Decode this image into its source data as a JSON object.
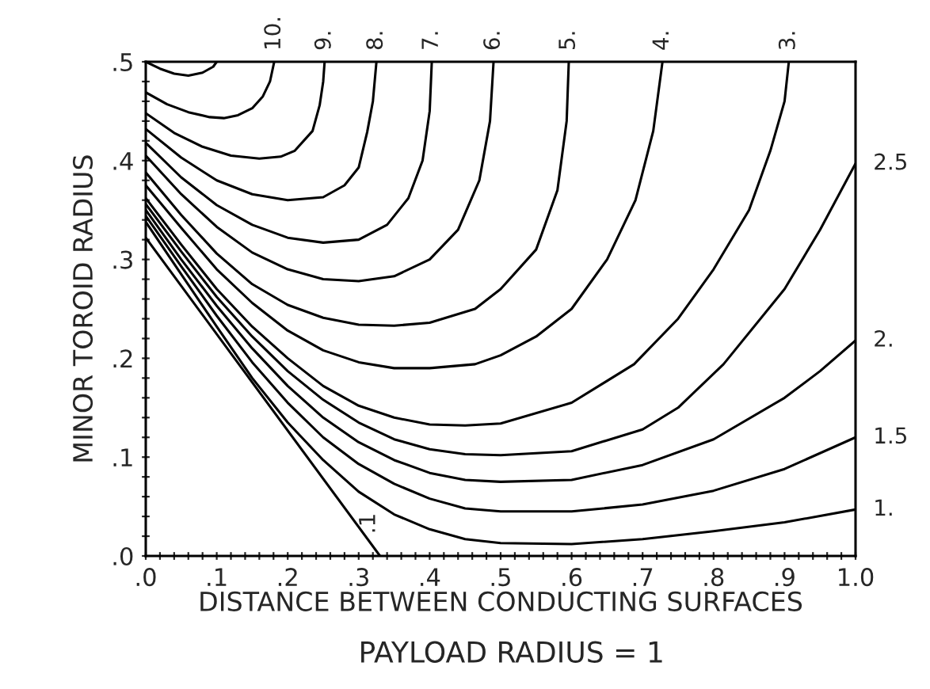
{
  "chart_data": {
    "type": "line",
    "xlabel": "DISTANCE BETWEEN CONDUCTING SURFACES",
    "ylabel": "MINOR TOROID RADIUS",
    "annotations": [
      "PAYLOAD RADIUS = 1"
    ],
    "xlim": [
      0,
      1.0
    ],
    "ylim": [
      0,
      0.5
    ],
    "xticks": [
      {
        "value": 0,
        "label": ".0"
      },
      {
        "value": 0.02,
        "label": null
      },
      {
        "value": 0.04,
        "label": null
      },
      {
        "value": 0.06,
        "label": null
      },
      {
        "value": 0.08,
        "label": null
      },
      {
        "value": 0.1,
        "label": ".1"
      },
      {
        "value": 0.12,
        "label": null
      },
      {
        "value": 0.14,
        "label": null
      },
      {
        "value": 0.16,
        "label": null
      },
      {
        "value": 0.18,
        "label": null
      },
      {
        "value": 0.2,
        "label": ".2"
      },
      {
        "value": 0.22,
        "label": null
      },
      {
        "value": 0.24,
        "label": null
      },
      {
        "value": 0.26,
        "label": null
      },
      {
        "value": 0.28,
        "label": null
      },
      {
        "value": 0.3,
        "label": ".3"
      },
      {
        "value": 0.32,
        "label": null
      },
      {
        "value": 0.34,
        "label": null
      },
      {
        "value": 0.36,
        "label": null
      },
      {
        "value": 0.38,
        "label": null
      },
      {
        "value": 0.4,
        "label": ".4"
      },
      {
        "value": 0.42,
        "label": null
      },
      {
        "value": 0.44,
        "label": null
      },
      {
        "value": 0.46,
        "label": null
      },
      {
        "value": 0.48,
        "label": null
      },
      {
        "value": 0.5,
        "label": ".5"
      },
      {
        "value": 0.52,
        "label": null
      },
      {
        "value": 0.54,
        "label": null
      },
      {
        "value": 0.56,
        "label": null
      },
      {
        "value": 0.58,
        "label": null
      },
      {
        "value": 0.6,
        "label": ".6"
      },
      {
        "value": 0.62,
        "label": null
      },
      {
        "value": 0.64,
        "label": null
      },
      {
        "value": 0.66,
        "label": null
      },
      {
        "value": 0.68,
        "label": null
      },
      {
        "value": 0.7,
        "label": ".7"
      },
      {
        "value": 0.72,
        "label": null
      },
      {
        "value": 0.74,
        "label": null
      },
      {
        "value": 0.76,
        "label": null
      },
      {
        "value": 0.78,
        "label": null
      },
      {
        "value": 0.8,
        "label": ".8"
      },
      {
        "value": 0.82,
        "label": null
      },
      {
        "value": 0.84,
        "label": null
      },
      {
        "value": 0.86,
        "label": null
      },
      {
        "value": 0.88,
        "label": null
      },
      {
        "value": 0.9,
        "label": ".9"
      },
      {
        "value": 0.92,
        "label": null
      },
      {
        "value": 0.94,
        "label": null
      },
      {
        "value": 0.96,
        "label": null
      },
      {
        "value": 0.98,
        "label": null
      },
      {
        "value": 1.0,
        "label": "1.0"
      }
    ],
    "yticks": [
      {
        "value": 0,
        "label": ".0"
      },
      {
        "value": 0.02,
        "label": null
      },
      {
        "value": 0.04,
        "label": null
      },
      {
        "value": 0.06,
        "label": null
      },
      {
        "value": 0.08,
        "label": null
      },
      {
        "value": 0.1,
        "label": ".1"
      },
      {
        "value": 0.12,
        "label": null
      },
      {
        "value": 0.14,
        "label": null
      },
      {
        "value": 0.16,
        "label": null
      },
      {
        "value": 0.18,
        "label": null
      },
      {
        "value": 0.2,
        "label": ".2"
      },
      {
        "value": 0.22,
        "label": null
      },
      {
        "value": 0.24,
        "label": null
      },
      {
        "value": 0.26,
        "label": null
      },
      {
        "value": 0.28,
        "label": null
      },
      {
        "value": 0.3,
        "label": ".3"
      },
      {
        "value": 0.32,
        "label": null
      },
      {
        "value": 0.34,
        "label": null
      },
      {
        "value": 0.36,
        "label": null
      },
      {
        "value": 0.38,
        "label": null
      },
      {
        "value": 0.4,
        "label": ".4"
      },
      {
        "value": 0.42,
        "label": null
      },
      {
        "value": 0.44,
        "label": null
      },
      {
        "value": 0.46,
        "label": null
      },
      {
        "value": 0.48,
        "label": null
      },
      {
        "value": 0.5,
        "label": ".5"
      }
    ],
    "marker": "none",
    "line_style": "solid",
    "grid": false,
    "legend": false,
    "series": [
      {
        "color": "#000000",
        "x": [
          0,
          0.02,
          0.04,
          0.06,
          0.08,
          0.095,
          0.1
        ],
        "values": [
          0.5,
          0.493,
          0.488,
          0.486,
          0.489,
          0.495,
          0.5
        ]
      },
      {
        "name": "10.",
        "color": "#000000",
        "x": [
          0,
          0.03,
          0.06,
          0.09,
          0.11,
          0.13,
          0.15,
          0.165,
          0.175,
          0.181
        ],
        "values": [
          0.469,
          0.457,
          0.449,
          0.444,
          0.443,
          0.446,
          0.453,
          0.465,
          0.48,
          0.5
        ]
      },
      {
        "name": "9.",
        "color": "#000000",
        "x": [
          0,
          0.04,
          0.08,
          0.12,
          0.16,
          0.19,
          0.21,
          0.235,
          0.245,
          0.25,
          0.252
        ],
        "values": [
          0.448,
          0.428,
          0.414,
          0.405,
          0.402,
          0.404,
          0.41,
          0.43,
          0.456,
          0.48,
          0.5
        ]
      },
      {
        "name": "8.",
        "color": "#000000",
        "x": [
          0,
          0.05,
          0.1,
          0.15,
          0.2,
          0.25,
          0.28,
          0.3,
          0.312,
          0.32,
          0.325
        ],
        "values": [
          0.432,
          0.403,
          0.38,
          0.366,
          0.36,
          0.363,
          0.375,
          0.393,
          0.429,
          0.46,
          0.5
        ]
      },
      {
        "name": "7.",
        "color": "#000000",
        "x": [
          0,
          0.05,
          0.1,
          0.15,
          0.2,
          0.25,
          0.3,
          0.34,
          0.37,
          0.39,
          0.4,
          0.403
        ],
        "values": [
          0.418,
          0.383,
          0.355,
          0.335,
          0.322,
          0.317,
          0.32,
          0.335,
          0.362,
          0.4,
          0.45,
          0.5
        ]
      },
      {
        "name": "6.",
        "color": "#000000",
        "x": [
          0,
          0.05,
          0.1,
          0.15,
          0.2,
          0.25,
          0.3,
          0.35,
          0.4,
          0.44,
          0.47,
          0.485,
          0.49
        ],
        "values": [
          0.405,
          0.366,
          0.333,
          0.307,
          0.29,
          0.28,
          0.278,
          0.283,
          0.3,
          0.33,
          0.38,
          0.44,
          0.5
        ]
      },
      {
        "name": "5.",
        "color": "#000000",
        "x": [
          0,
          0.05,
          0.1,
          0.15,
          0.2,
          0.25,
          0.3,
          0.35,
          0.4,
          0.464,
          0.5,
          0.55,
          0.58,
          0.593,
          0.596
        ],
        "values": [
          0.388,
          0.345,
          0.306,
          0.275,
          0.254,
          0.241,
          0.234,
          0.233,
          0.236,
          0.25,
          0.27,
          0.31,
          0.37,
          0.44,
          0.5
        ]
      },
      {
        "name": "4.",
        "color": "#000000",
        "x": [
          0,
          0.05,
          0.1,
          0.15,
          0.2,
          0.25,
          0.3,
          0.35,
          0.4,
          0.464,
          0.5,
          0.55,
          0.6,
          0.65,
          0.69,
          0.715,
          0.728
        ],
        "values": [
          0.375,
          0.332,
          0.29,
          0.256,
          0.228,
          0.208,
          0.196,
          0.19,
          0.19,
          0.194,
          0.203,
          0.222,
          0.25,
          0.3,
          0.36,
          0.43,
          0.5
        ]
      },
      {
        "name": "3.",
        "color": "#000000",
        "x": [
          0,
          0.05,
          0.1,
          0.15,
          0.2,
          0.25,
          0.3,
          0.35,
          0.4,
          0.45,
          0.5,
          0.6,
          0.688,
          0.75,
          0.8,
          0.85,
          0.88,
          0.9,
          0.906
        ],
        "values": [
          0.362,
          0.315,
          0.27,
          0.232,
          0.2,
          0.172,
          0.152,
          0.14,
          0.133,
          0.132,
          0.134,
          0.155,
          0.194,
          0.24,
          0.29,
          0.35,
          0.41,
          0.46,
          0.5
        ]
      },
      {
        "name": "2.5",
        "color": "#000000",
        "x": [
          0,
          0.05,
          0.1,
          0.15,
          0.2,
          0.25,
          0.3,
          0.35,
          0.4,
          0.45,
          0.5,
          0.6,
          0.7,
          0.75,
          0.814,
          0.9,
          0.95,
          1.0
        ],
        "values": [
          0.356,
          0.308,
          0.262,
          0.222,
          0.187,
          0.158,
          0.135,
          0.118,
          0.108,
          0.103,
          0.102,
          0.106,
          0.128,
          0.15,
          0.194,
          0.27,
          0.33,
          0.397
        ]
      },
      {
        "name": "2.",
        "color": "#000000",
        "x": [
          0,
          0.05,
          0.1,
          0.15,
          0.2,
          0.25,
          0.3,
          0.35,
          0.4,
          0.45,
          0.5,
          0.6,
          0.7,
          0.8,
          0.9,
          0.95,
          1.0
        ],
        "values": [
          0.35,
          0.3,
          0.253,
          0.21,
          0.172,
          0.14,
          0.115,
          0.097,
          0.084,
          0.077,
          0.075,
          0.077,
          0.092,
          0.118,
          0.16,
          0.187,
          0.218
        ]
      },
      {
        "name": "1.5",
        "color": "#000000",
        "x": [
          0,
          0.05,
          0.1,
          0.15,
          0.2,
          0.25,
          0.3,
          0.35,
          0.4,
          0.45,
          0.5,
          0.6,
          0.7,
          0.8,
          0.9,
          1.0
        ],
        "values": [
          0.344,
          0.293,
          0.243,
          0.196,
          0.155,
          0.12,
          0.093,
          0.073,
          0.058,
          0.048,
          0.045,
          0.045,
          0.052,
          0.066,
          0.088,
          0.12
        ]
      },
      {
        "name": "1.",
        "color": "#000000",
        "x": [
          0,
          0.05,
          0.1,
          0.15,
          0.2,
          0.25,
          0.3,
          0.35,
          0.4,
          0.45,
          0.5,
          0.6,
          0.7,
          0.8,
          0.9,
          1.0
        ],
        "values": [
          0.338,
          0.285,
          0.232,
          0.18,
          0.135,
          0.097,
          0.065,
          0.042,
          0.027,
          0.017,
          0.013,
          0.012,
          0.017,
          0.025,
          0.034,
          0.047
        ]
      },
      {
        "name": ".1",
        "color": "#000000",
        "x": [
          0,
          0.33
        ],
        "values": [
          0.322,
          0
        ]
      }
    ]
  }
}
